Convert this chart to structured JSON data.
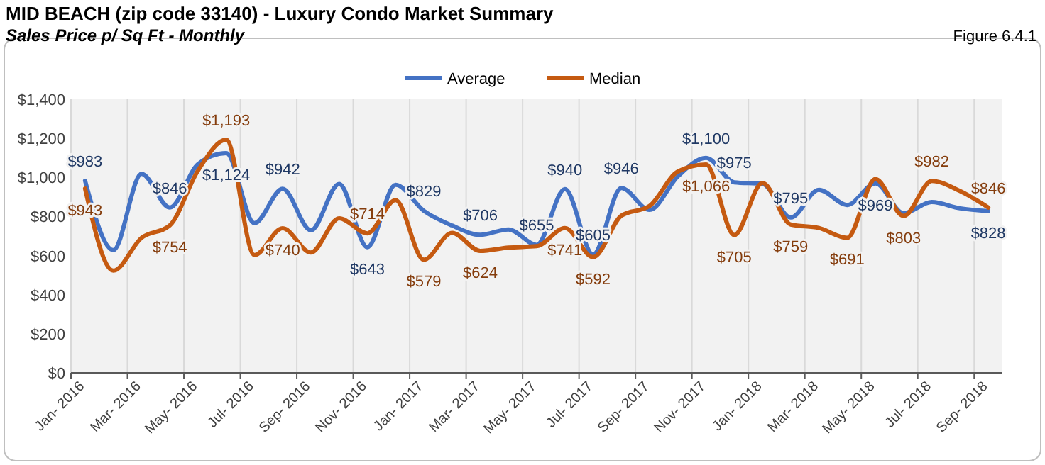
{
  "chart_data": {
    "type": "line",
    "title": "MID BEACH (zip code 33140) - Luxury Condo Market Summary",
    "subtitle": "Sales Price  p/ Sq Ft - Monthly",
    "annotations": [
      "Figure 6.4.1"
    ],
    "categories": [
      "Jan- 2016",
      null,
      "Mar- 2016",
      null,
      "May- 2016",
      null,
      "Jul- 2016",
      null,
      "Sep- 2016",
      null,
      "Nov- 2016",
      null,
      "Jan- 2017",
      null,
      "Mar- 2017",
      null,
      "May- 2017",
      null,
      "Jul- 2017",
      null,
      "Sep- 2017",
      null,
      "Nov- 2017",
      null,
      "Jan- 2018",
      null,
      "Mar- 2018",
      null,
      "May- 2018",
      null,
      "Jul- 2018",
      null,
      "Sep- 2018"
    ],
    "series": [
      {
        "name": "Average",
        "color": "#4472c4",
        "values": [
          983,
          628,
          1018,
          846,
          1068,
          1124,
          766,
          942,
          729,
          967,
          643,
          962,
          829,
          754,
          706,
          734,
          655,
          940,
          605,
          946,
          834,
          1005,
          1100,
          975,
          967,
          795,
          937,
          859,
          969,
          817,
          874,
          842,
          828
        ],
        "value_labels": [
          "$983",
          null,
          null,
          "$846",
          null,
          "$1,124",
          null,
          "$942",
          null,
          null,
          "$643",
          null,
          "$829",
          null,
          "$706",
          null,
          "$655",
          "$940",
          "$605",
          "$946",
          null,
          null,
          "$1,100",
          "$975",
          null,
          "$795",
          null,
          null,
          "$969",
          null,
          null,
          null,
          "$828"
        ]
      },
      {
        "name": "Median",
        "color": "#c55a11",
        "values": [
          943,
          523,
          691,
          754,
          1035,
          1193,
          603,
          740,
          616,
          791,
          714,
          884,
          579,
          716,
          624,
          641,
          648,
          741,
          592,
          804,
          854,
          1030,
          1066,
          705,
          972,
          759,
          741,
          691,
          992,
          803,
          982,
          930,
          846
        ],
        "value_labels": [
          "$943",
          null,
          null,
          "$754",
          null,
          "$1,193",
          null,
          "$740",
          null,
          null,
          "$714",
          null,
          "$579",
          null,
          "$624",
          null,
          null,
          "$741",
          "$592",
          null,
          null,
          null,
          "$1,066",
          "$705",
          null,
          "$759",
          null,
          "$691",
          null,
          "$803",
          "$982",
          null,
          "$846"
        ]
      }
    ],
    "ylim": [
      0,
      1400
    ],
    "yticks": [
      {
        "value": 0,
        "label": "$0"
      },
      {
        "value": 200,
        "label": "$200"
      },
      {
        "value": 400,
        "label": "$400"
      },
      {
        "value": 600,
        "label": "$600"
      },
      {
        "value": 800,
        "label": "$800"
      },
      {
        "value": 1000,
        "label": "$1,000"
      },
      {
        "value": 1200,
        "label": "$1,200"
      },
      {
        "value": 1400,
        "label": "$1,400"
      }
    ],
    "grid": "x",
    "legend": "top",
    "marker": "none",
    "line_style": "solid"
  }
}
